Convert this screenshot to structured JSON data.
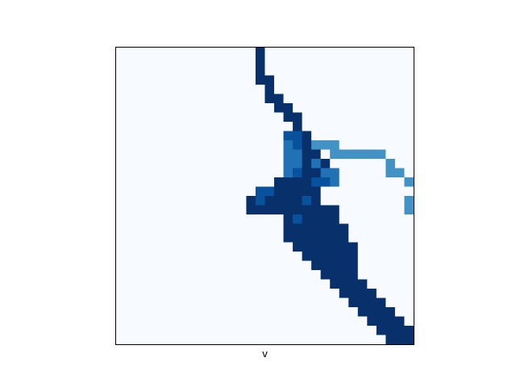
{
  "chart_data": {
    "type": "heatmap",
    "colormap": "Blues",
    "xlabel": "v",
    "ylabel": "",
    "title": "",
    "xticks": [],
    "yticks": [],
    "grid": false,
    "colormap_stops": [
      "#f7fbff",
      "#deebf7",
      "#c6dbef",
      "#9ecae1",
      "#6baed6",
      "#4292c6",
      "#2171b5",
      "#08519c",
      "#08306b"
    ],
    "rows": [
      "00000000000000080000000000000000",
      "00000000000000080000000000000000",
      "00000000000000080000000000000000",
      "00000000000000088000000000000000",
      "00000000000000008000000000000000",
      "00000000000000008800000000000000",
      "00000000000000000880000000000000",
      "00000000000000000088000000000000",
      "00000000000000000008000000000000",
      "00000000000000000077800000000000",
      "00000000000000000067855500000000",
      "00000000000000000066880555555000",
      "00000000000000000066868000000500",
      "00000000000000000067886600000550",
      "00000000000000000888877600000005",
      "00000000000000077888880000000000",
      "00000000000000878888780000000005",
      "00000000000000888888888800000005",
      "00000000000000000087888800000000",
      "00000000000000000088888880000000",
      "00000000000000000088888880000000",
      "00000000000000000008888888000000",
      "00000000000000000000888888000000",
      "00000000000000000000088888000000",
      "00000000000000000000008888000000",
      "00000000000000000000000888800000",
      "00000000000000000000000088880000",
      "00000000000000000000000008888000",
      "00000000000000000000000000888800",
      "00000000000000000000000000088880",
      "00000000000000000000000000008888",
      "00000000000000000000000000000888"
    ]
  }
}
